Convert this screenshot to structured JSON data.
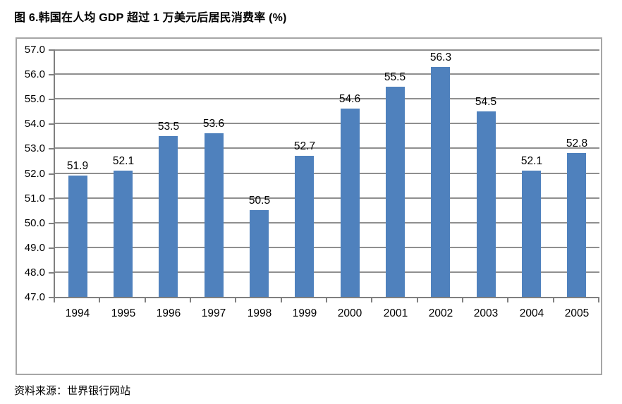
{
  "page": {
    "figure_title": "图 6.韩国在人均 GDP 超过 1 万美元后居民消费率 (%)",
    "source_note": "资料来源：世界银行网站"
  },
  "chart_data": {
    "type": "bar",
    "title": "图 6.韩国在人均 GDP 超过 1 万美元后居民消费率 (%)",
    "categories": [
      "1994",
      "1995",
      "1996",
      "1997",
      "1998",
      "1999",
      "2000",
      "2001",
      "2002",
      "2003",
      "2004",
      "2005"
    ],
    "values": [
      51.9,
      52.1,
      53.5,
      53.6,
      50.5,
      52.7,
      54.6,
      55.5,
      56.3,
      54.5,
      52.1,
      52.8
    ],
    "data_labels": [
      "51.9",
      "52.1",
      "53.5",
      "53.6",
      "50.5",
      "52.7",
      "54.6",
      "55.5",
      "56.3",
      "54.5",
      "52.1",
      "52.8"
    ],
    "xlabel": "",
    "ylabel": "",
    "ylim": [
      47.0,
      57.0
    ],
    "ytick_step": 1.0,
    "ytick_labels": [
      "47.0",
      "48.0",
      "49.0",
      "50.0",
      "51.0",
      "52.0",
      "53.0",
      "54.0",
      "55.0",
      "56.0",
      "57.0"
    ],
    "grid": true,
    "legend": false,
    "colors": {
      "bar": "#4F81BD",
      "gridline": "#8F8F8F",
      "axis": "#7F7F7F",
      "frame_border": "#A6A6A6",
      "text": "#000000",
      "background": "#FFFFFF"
    }
  }
}
